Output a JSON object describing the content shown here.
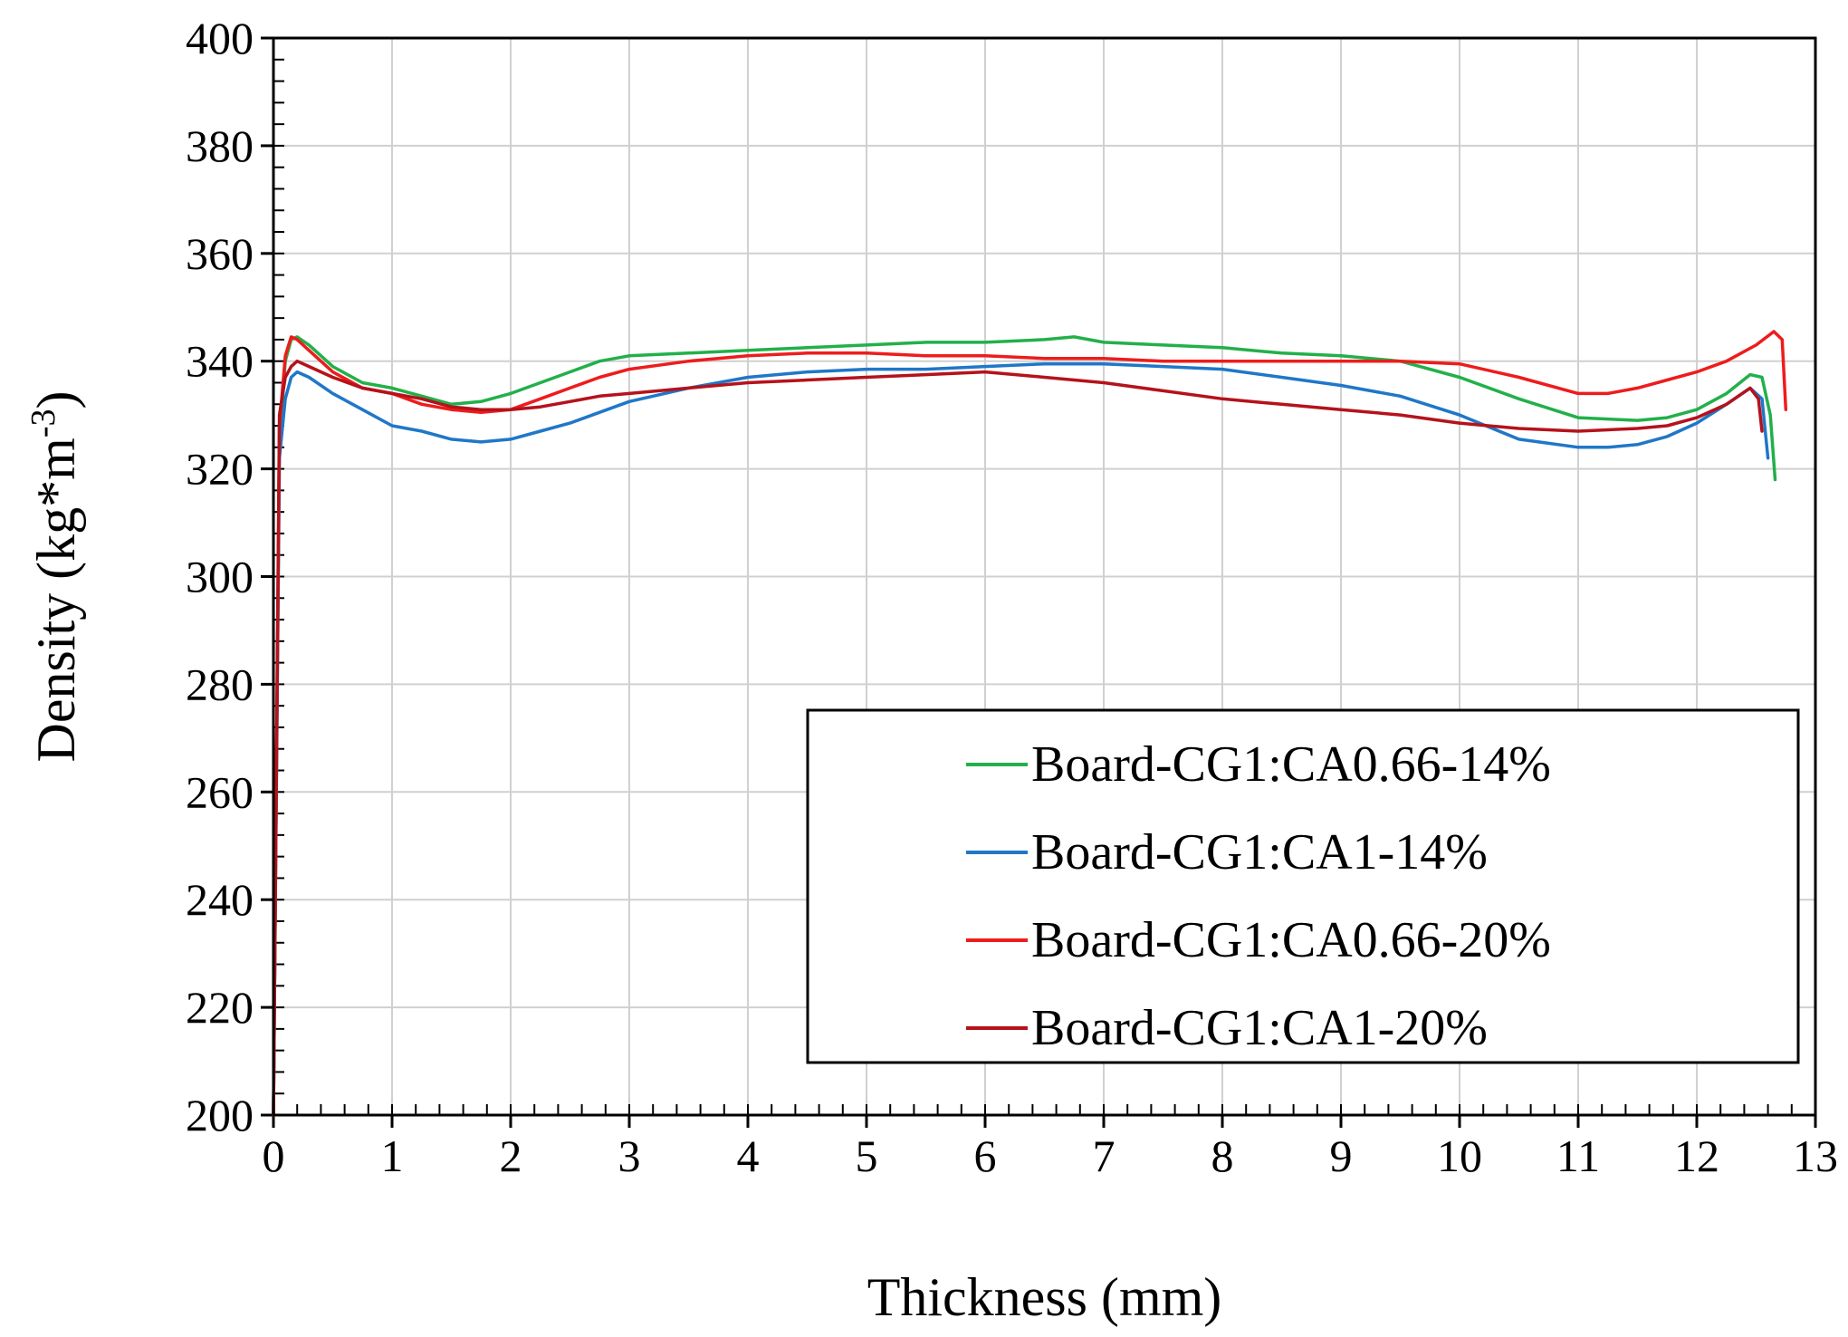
{
  "chart_data": {
    "type": "line",
    "title": "",
    "xlabel": "Thickness (mm)",
    "ylabel": {
      "main": "Density (kg*m",
      "sup": "-3",
      "close": ")"
    },
    "xlim": [
      0,
      13
    ],
    "ylim": [
      200,
      400
    ],
    "xticks": [
      0,
      1,
      2,
      3,
      4,
      5,
      6,
      7,
      8,
      9,
      10,
      11,
      12,
      13
    ],
    "yticks": [
      200,
      220,
      240,
      260,
      280,
      300,
      320,
      340,
      360,
      380,
      400
    ],
    "grid": true,
    "legend_position": "bottom-right",
    "series": [
      {
        "name": "Board-CG1:CA0.66-14%",
        "color": "#22b04a",
        "x": [
          0.0,
          0.05,
          0.1,
          0.15,
          0.2,
          0.3,
          0.5,
          0.75,
          1.0,
          1.25,
          1.5,
          1.75,
          2.0,
          2.25,
          2.5,
          2.75,
          3.0,
          3.5,
          4.0,
          4.5,
          5.0,
          5.5,
          6.0,
          6.5,
          6.75,
          7.0,
          7.5,
          8.0,
          8.5,
          9.0,
          9.5,
          10.0,
          10.5,
          11.0,
          11.5,
          11.75,
          12.0,
          12.25,
          12.45,
          12.55,
          12.62,
          12.66
        ],
        "y": [
          200,
          325,
          340,
          344,
          344.5,
          343,
          339,
          336,
          335,
          333.5,
          332,
          332.5,
          334,
          336,
          338,
          340,
          341,
          341.5,
          342,
          342.5,
          343,
          343.5,
          343.5,
          344,
          344.5,
          343.5,
          343,
          342.5,
          341.5,
          341,
          340,
          337,
          333,
          329.5,
          329,
          329.5,
          331,
          334,
          337.5,
          337,
          330,
          318
        ]
      },
      {
        "name": "Board-CG1:CA1-14%",
        "color": "#1f77c8",
        "x": [
          0.0,
          0.05,
          0.1,
          0.15,
          0.2,
          0.3,
          0.5,
          0.75,
          1.0,
          1.25,
          1.5,
          1.75,
          2.0,
          2.25,
          2.5,
          2.75,
          3.0,
          3.5,
          4.0,
          4.5,
          5.0,
          5.5,
          6.0,
          6.5,
          7.0,
          7.5,
          8.0,
          8.5,
          9.0,
          9.5,
          10.0,
          10.5,
          11.0,
          11.25,
          11.5,
          11.75,
          12.0,
          12.25,
          12.45,
          12.55,
          12.6
        ],
        "y": [
          200,
          322,
          333,
          337,
          338,
          337,
          334,
          331,
          328,
          327,
          325.5,
          325,
          325.5,
          327,
          328.5,
          330.5,
          332.5,
          335,
          337,
          338,
          338.5,
          338.5,
          339,
          339.5,
          339.5,
          339,
          338.5,
          337,
          335.5,
          333.5,
          330,
          325.5,
          324,
          324,
          324.5,
          326,
          328.5,
          332,
          335,
          333,
          322
        ]
      },
      {
        "name": "Board-CG1:CA0.66-20%",
        "color": "#ee1c1c",
        "x": [
          0.0,
          0.05,
          0.1,
          0.15,
          0.2,
          0.3,
          0.5,
          0.75,
          1.0,
          1.25,
          1.5,
          1.75,
          2.0,
          2.25,
          2.5,
          2.75,
          3.0,
          3.5,
          4.0,
          4.5,
          5.0,
          5.5,
          6.0,
          6.5,
          7.0,
          7.5,
          8.0,
          8.5,
          9.0,
          9.5,
          10.0,
          10.5,
          11.0,
          11.25,
          11.5,
          11.75,
          12.0,
          12.25,
          12.5,
          12.65,
          12.72,
          12.75
        ],
        "y": [
          200,
          328,
          341,
          344.5,
          344,
          342,
          338,
          335,
          334,
          332,
          331,
          330.5,
          331,
          333,
          335,
          337,
          338.5,
          340,
          341,
          341.5,
          341.5,
          341,
          341,
          340.5,
          340.5,
          340,
          340,
          340,
          340,
          340,
          339.5,
          337,
          334,
          334,
          335,
          336.5,
          338,
          340,
          343,
          345.5,
          344,
          331
        ]
      },
      {
        "name": "Board-CG1:CA1-20%",
        "color": "#b5121b",
        "x": [
          0.0,
          0.05,
          0.1,
          0.15,
          0.2,
          0.3,
          0.5,
          0.75,
          1.0,
          1.25,
          1.5,
          1.75,
          2.0,
          2.25,
          2.5,
          2.75,
          3.0,
          3.5,
          4.0,
          4.5,
          5.0,
          5.5,
          6.0,
          6.5,
          7.0,
          7.5,
          8.0,
          8.5,
          9.0,
          9.5,
          10.0,
          10.5,
          11.0,
          11.5,
          11.75,
          12.0,
          12.25,
          12.45,
          12.52,
          12.55
        ],
        "y": [
          200,
          330,
          337,
          339,
          340,
          339,
          337,
          335,
          334,
          333,
          331.5,
          331,
          331,
          331.5,
          332.5,
          333.5,
          334,
          335,
          336,
          336.5,
          337,
          337.5,
          338,
          337,
          336,
          334.5,
          333,
          332,
          331,
          330,
          328.5,
          327.5,
          327,
          327.5,
          328,
          329.5,
          332,
          335,
          333,
          327
        ]
      }
    ]
  }
}
